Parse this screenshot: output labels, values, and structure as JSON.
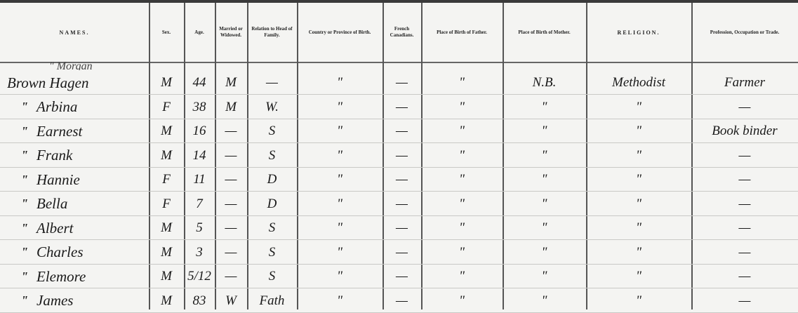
{
  "headers": [
    "NAMES.",
    "Sex.",
    "Age.",
    "Married or Widowed.",
    "Relation to Head of Family.",
    "Country or Province of Birth.",
    "French Canadians.",
    "Place of Birth of Father.",
    "Place of Birth of Mother.",
    "RELIGION.",
    "Profession, Occupation or Trade."
  ],
  "partial_row": "\" Morgan",
  "ditto_mark": "\"",
  "rows": [
    {
      "ditto": false,
      "name": "Brown Hagen",
      "cells": [
        "M",
        "44",
        "M",
        "—",
        "\"",
        "—",
        "\"",
        "N.B.",
        "Methodist",
        "Farmer"
      ]
    },
    {
      "ditto": true,
      "name": "Arbina",
      "cells": [
        "F",
        "38",
        "M",
        "W.",
        "\"",
        "—",
        "\"",
        "\"",
        "\"",
        "—"
      ]
    },
    {
      "ditto": true,
      "name": "Earnest",
      "cells": [
        "M",
        "16",
        "—",
        "S",
        "\"",
        "—",
        "\"",
        "\"",
        "\"",
        "Book binder"
      ]
    },
    {
      "ditto": true,
      "name": "Frank",
      "cells": [
        "M",
        "14",
        "—",
        "S",
        "\"",
        "—",
        "\"",
        "\"",
        "\"",
        "—"
      ]
    },
    {
      "ditto": true,
      "name": "Hannie",
      "cells": [
        "F",
        "11",
        "—",
        "D",
        "\"",
        "—",
        "\"",
        "\"",
        "\"",
        "—"
      ]
    },
    {
      "ditto": true,
      "name": "Bella",
      "cells": [
        "F",
        "7",
        "—",
        "D",
        "\"",
        "—",
        "\"",
        "\"",
        "\"",
        "—"
      ]
    },
    {
      "ditto": true,
      "name": "Albert",
      "cells": [
        "M",
        "5",
        "—",
        "S",
        "\"",
        "—",
        "\"",
        "\"",
        "\"",
        "—"
      ]
    },
    {
      "ditto": true,
      "name": "Charles",
      "cells": [
        "M",
        "3",
        "—",
        "S",
        "\"",
        "—",
        "\"",
        "\"",
        "\"",
        "—"
      ]
    },
    {
      "ditto": true,
      "name": "Elemore",
      "cells": [
        "M",
        "5/12",
        "—",
        "S",
        "\"",
        "—",
        "\"",
        "\"",
        "\"",
        "—"
      ]
    },
    {
      "ditto": true,
      "name": "James",
      "cells": [
        "M",
        "83",
        "W",
        "Fath",
        "\"",
        "—",
        "\"",
        "\"",
        "\"",
        "—"
      ]
    }
  ]
}
